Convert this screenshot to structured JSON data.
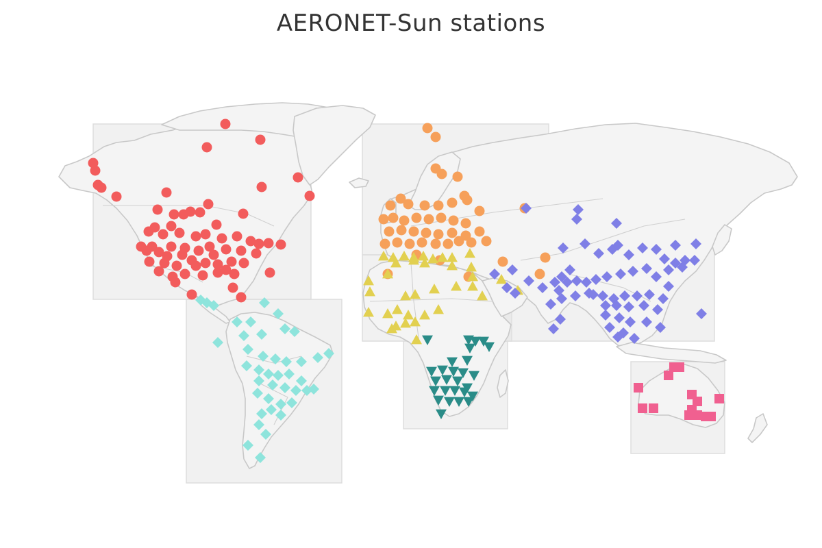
{
  "title": "AERONET-Sun stations",
  "map": {
    "land_color": "#f4f4f4",
    "coastline_color": "#c8c8c8",
    "region_box_color": "#e3e3e3"
  },
  "regions": [
    {
      "id": "north-america",
      "marker": "circle",
      "color": "#f25c5c"
    },
    {
      "id": "south-america",
      "marker": "diamond",
      "color": "#8ee4dc"
    },
    {
      "id": "europe",
      "marker": "circle",
      "color": "#f6a05a"
    },
    {
      "id": "north-africa-middle-east",
      "marker": "triangle-up",
      "color": "#e2d050"
    },
    {
      "id": "southern-africa",
      "marker": "triangle-down",
      "color": "#2a8c88"
    },
    {
      "id": "asia",
      "marker": "diamond",
      "color": "#7f7fe6"
    },
    {
      "id": "australia",
      "marker": "square",
      "color": "#f06090"
    }
  ]
}
